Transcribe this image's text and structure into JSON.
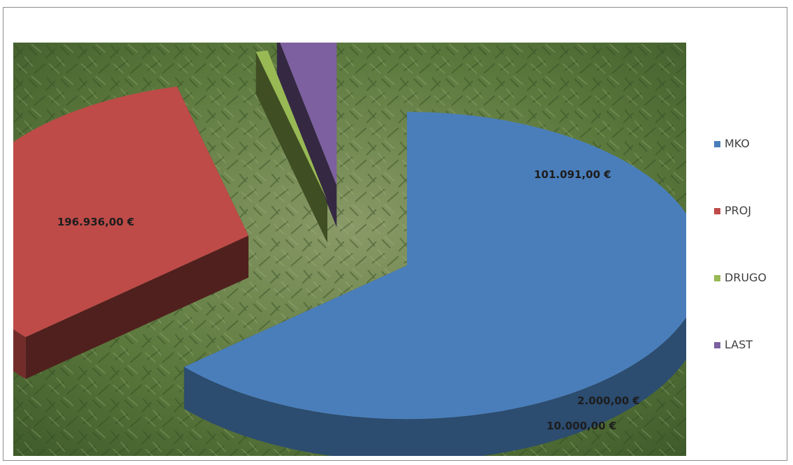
{
  "chart_data": {
    "type": "pie",
    "style": "3d-exploded",
    "background": "photo of green conifer (juniper) branches",
    "categories": [
      "MKO",
      "PROJ",
      "DRUGO",
      "LAST"
    ],
    "values": [
      196936,
      101091,
      2000,
      10000
    ],
    "data_labels": [
      "196.936,00 €",
      "101.091,00 €",
      "2.000,00 €",
      "10.000,00 €"
    ],
    "colors": [
      "#4a7ebb",
      "#be4b48",
      "#98b954",
      "#7d60a0"
    ],
    "legend_position": "right",
    "title": ""
  }
}
